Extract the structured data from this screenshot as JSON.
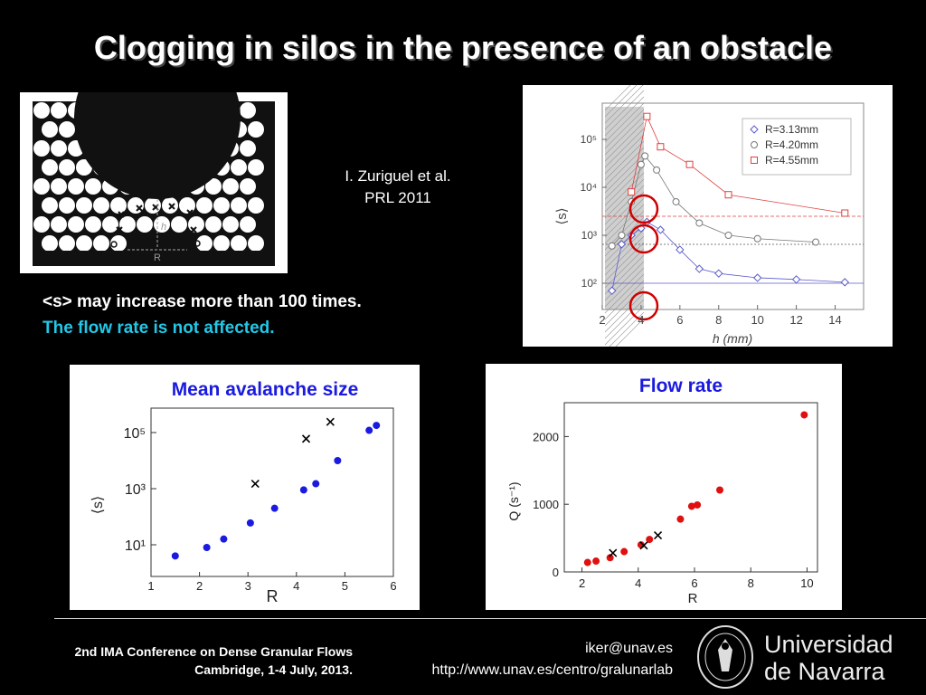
{
  "title": "Clogging in silos in the presence of an obstacle",
  "citation": {
    "line1": "I. Zuriguel et al.",
    "line2": "PRL 2011"
  },
  "notes": {
    "line1": "<s> may increase more than 100 times.",
    "line2": "The flow rate is not affected."
  },
  "sketch": {
    "h_label": "h",
    "r_label": "R"
  },
  "top_chart": {
    "xlabel": "h (mm)",
    "ylabel": "⟨s⟩",
    "x_ticks": [
      "2",
      "4",
      "6",
      "8",
      "10",
      "12",
      "14"
    ],
    "y_ticks": [
      "10²",
      "10³",
      "10⁴",
      "10⁵"
    ],
    "legend": [
      "R=3.13mm",
      "R=4.20mm",
      "R=4.55mm"
    ],
    "colors": [
      "#5a5acc",
      "#777777",
      "#e04040"
    ]
  },
  "mean_chart": {
    "title": "Mean avalanche size",
    "xlabel": "R",
    "ylabel": "⟨s⟩",
    "x_ticks": [
      "1",
      "2",
      "3",
      "4",
      "5",
      "6"
    ],
    "y_ticks": [
      "10¹",
      "10³",
      "10⁵"
    ]
  },
  "flow_chart": {
    "title": "Flow rate",
    "xlabel": "R",
    "ylabel": "Q (s⁻¹)",
    "x_ticks": [
      "2",
      "4",
      "6",
      "8",
      "10"
    ],
    "y_ticks": [
      "0",
      "1000",
      "2000"
    ]
  },
  "chart_data": [
    {
      "type": "line",
      "xlabel": "h (mm)",
      "ylabel": "⟨s⟩",
      "xlim": [
        2,
        15
      ],
      "ylim": [
        50,
        500000
      ],
      "yscale": "log",
      "grid": false,
      "legend_position": "top-right",
      "series": [
        {
          "name": "R=3.13mm",
          "marker": "diamond",
          "x": [
            2.5,
            3.0,
            3.5,
            4.0,
            4.3,
            5.0,
            6.0,
            7.0,
            8.0,
            10.0,
            12.0,
            14.5
          ],
          "y": [
            70,
            650,
            1000,
            1400,
            1900,
            1300,
            500,
            200,
            160,
            130,
            120,
            105
          ]
        },
        {
          "name": "R=4.20mm",
          "marker": "circle",
          "x": [
            2.5,
            3.0,
            3.5,
            4.0,
            4.2,
            4.8,
            5.8,
            7.0,
            8.5,
            10.0,
            13.0
          ],
          "y": [
            600,
            1000,
            5000,
            30000,
            45000,
            23000,
            5000,
            1800,
            1000,
            850,
            720
          ]
        },
        {
          "name": "R=4.55mm",
          "marker": "square",
          "x": [
            3.5,
            4.3,
            5.0,
            6.5,
            8.5,
            14.5
          ],
          "y": [
            8000,
            300000,
            70000,
            30000,
            7000,
            2900
          ]
        }
      ]
    },
    {
      "type": "scatter",
      "title": "Mean avalanche size",
      "xlabel": "R",
      "ylabel": "⟨s⟩",
      "xlim": [
        1,
        6
      ],
      "ylim": [
        2,
        400000
      ],
      "yscale": "log",
      "series": [
        {
          "marker": "dot",
          "color": "#1a1ae0",
          "x": [
            1.5,
            2.15,
            2.5,
            3.05,
            3.55,
            4.15,
            4.4,
            4.85,
            5.5,
            5.65
          ],
          "y": [
            4,
            8,
            16,
            60,
            200,
            900,
            1500,
            10000,
            120000,
            180000
          ]
        },
        {
          "marker": "x",
          "color": "#000000",
          "x": [
            3.15,
            4.2,
            4.7
          ],
          "y": [
            1500,
            60000,
            240000
          ]
        }
      ]
    },
    {
      "type": "scatter",
      "title": "Flow rate",
      "xlabel": "R",
      "ylabel": "Q (s⁻¹)",
      "xlim": [
        1.5,
        10.5
      ],
      "ylim": [
        0,
        2500
      ],
      "series": [
        {
          "marker": "dot",
          "color": "#e01010",
          "x": [
            2.2,
            2.5,
            3.0,
            3.5,
            4.1,
            4.4,
            5.5,
            5.9,
            6.1,
            6.9,
            9.9
          ],
          "y": [
            140,
            160,
            210,
            300,
            400,
            480,
            780,
            970,
            990,
            1210,
            2320
          ]
        },
        {
          "marker": "x",
          "color": "#000000",
          "x": [
            3.1,
            4.2,
            4.7
          ],
          "y": [
            280,
            390,
            540
          ]
        }
      ]
    }
  ],
  "footer": {
    "conf_line1": "2nd IMA Conference on Dense Granular Flows",
    "conf_line2": "Cambridge, 1-4 July, 2013.",
    "email": "iker@unav.es",
    "url": "http://www.unav.es/centro/gralunarlab",
    "uni_line1": "Universidad",
    "uni_line2": "de Navarra"
  }
}
